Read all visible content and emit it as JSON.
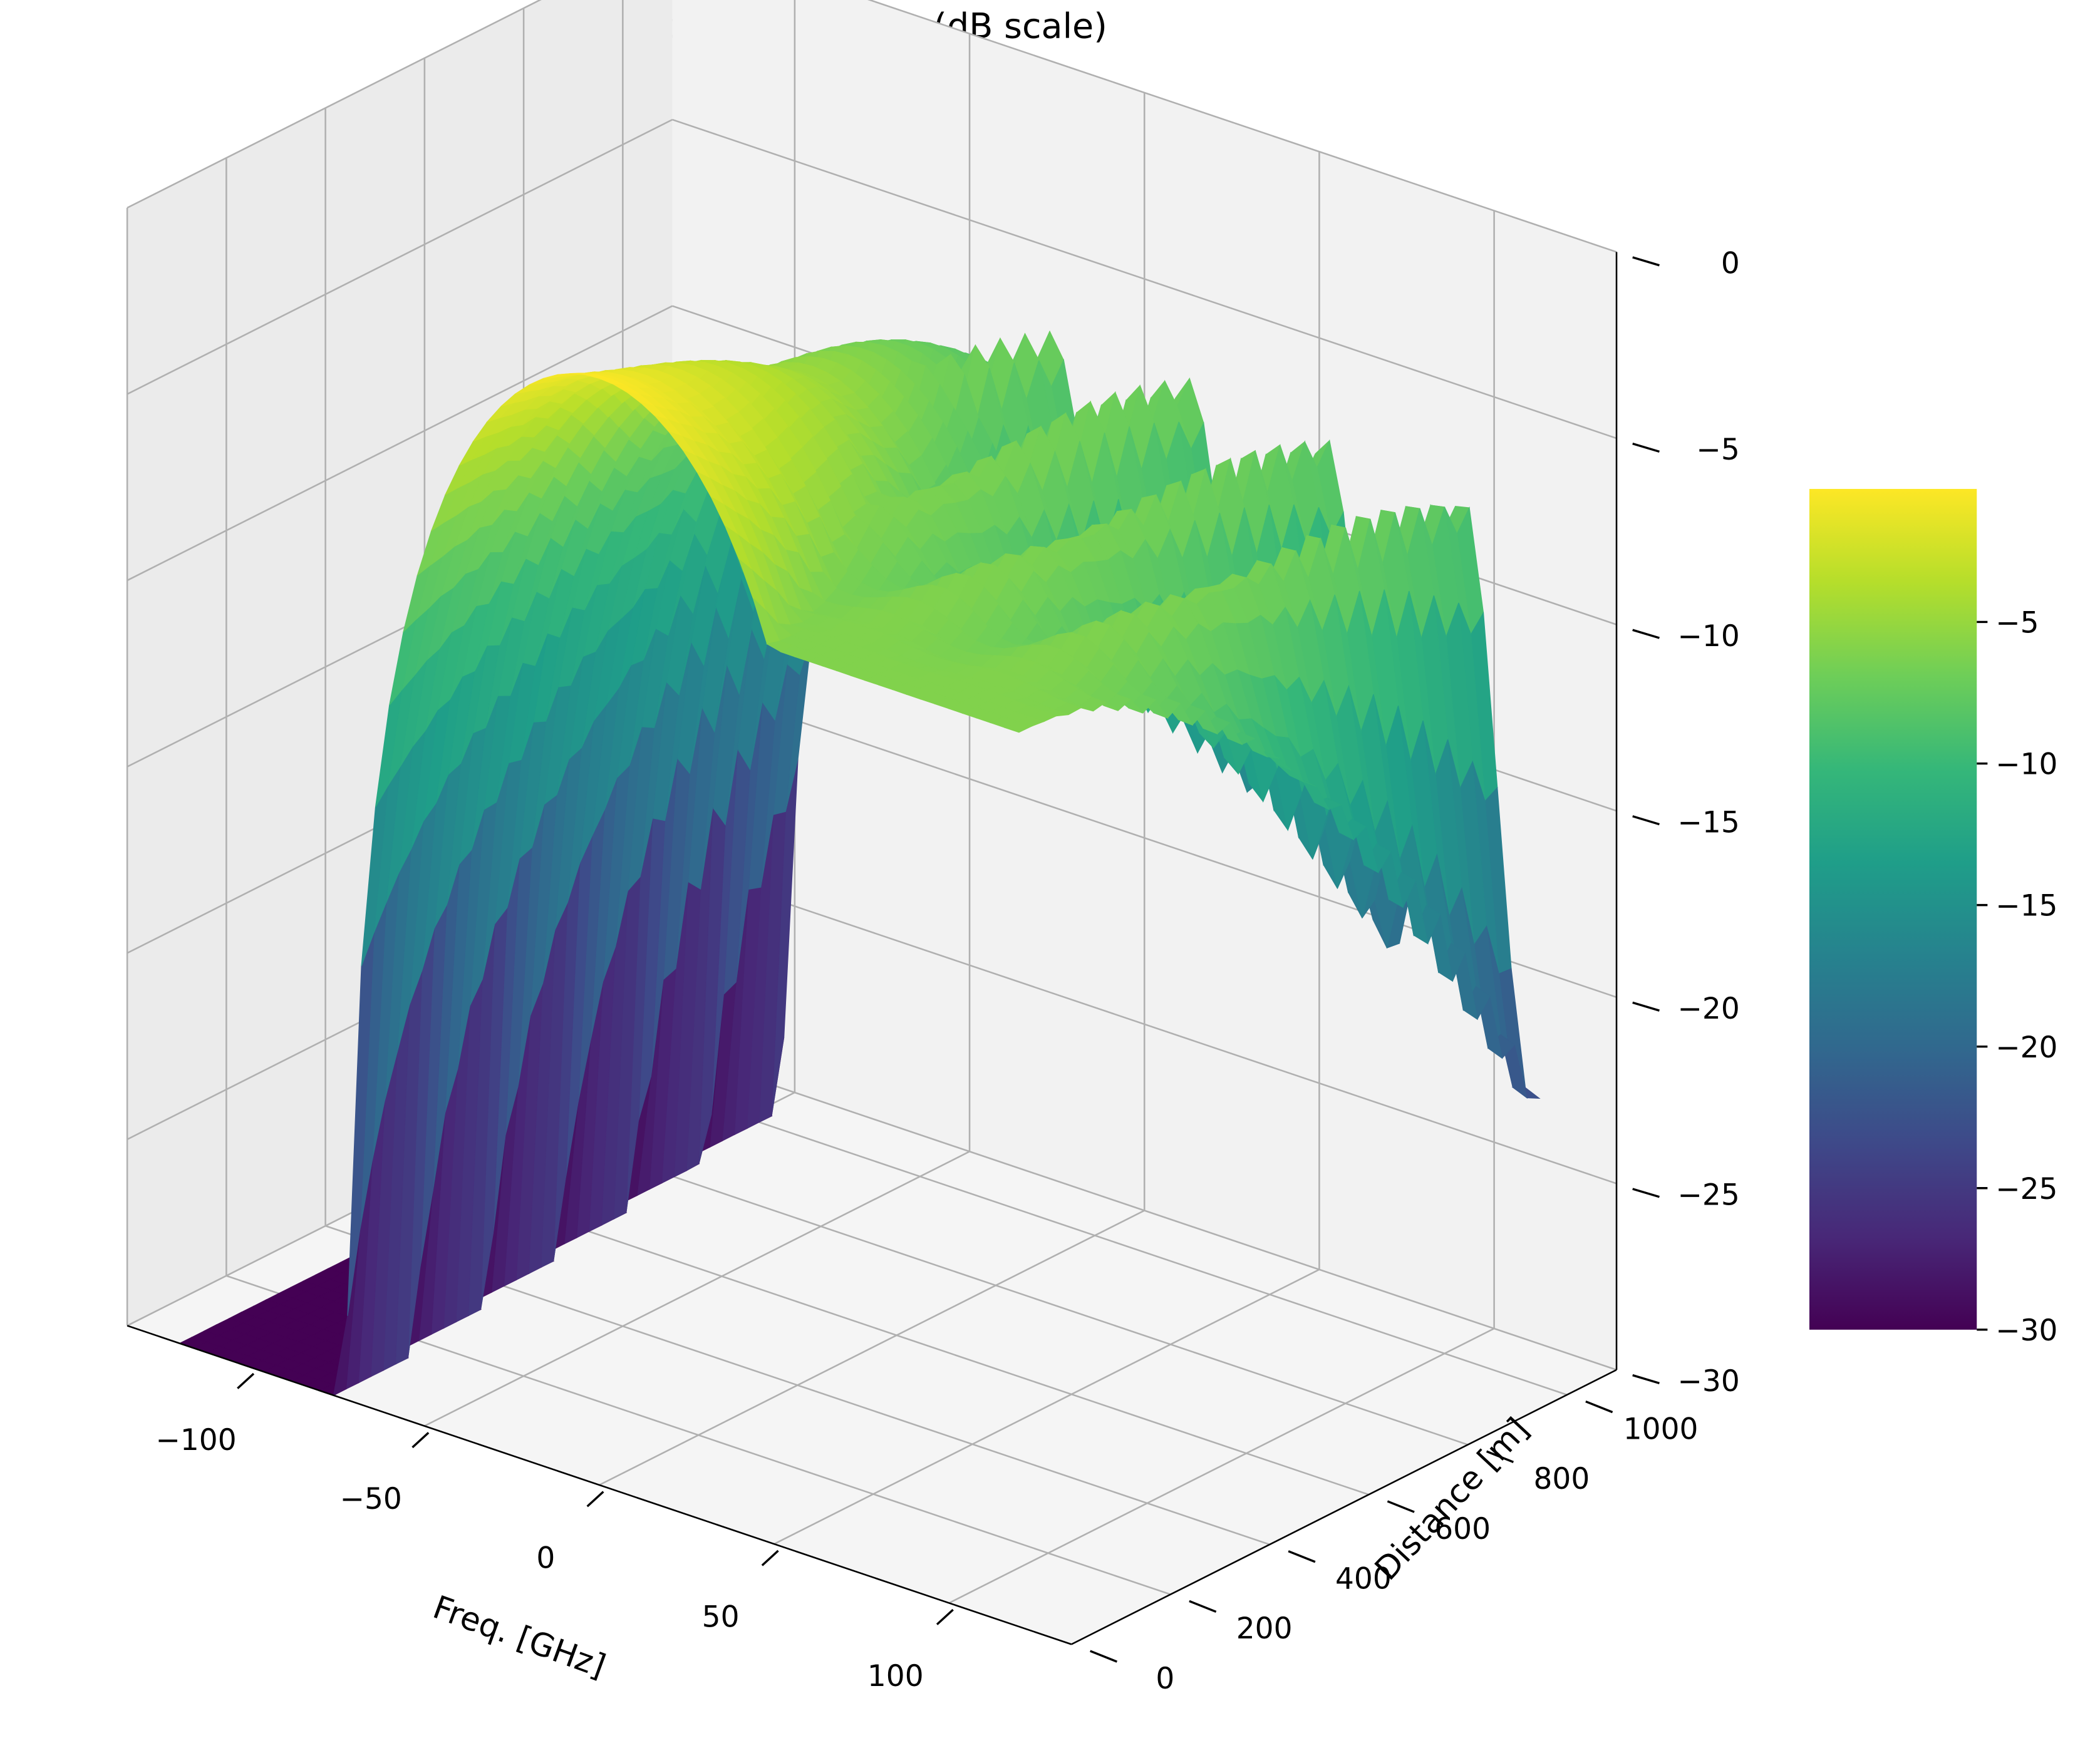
{
  "chart_data": {
    "type": "surface3d",
    "title": "Spectrum Evolution (dB scale)",
    "xlabel": "Freq. [GHz]",
    "ylabel": "Distance [m]",
    "zlabel": "",
    "xlim": [
      -135,
      135
    ],
    "ylim": [
      0,
      1100
    ],
    "zlim": [
      -30,
      0
    ],
    "xticks": [
      -100,
      -50,
      0,
      50,
      100
    ],
    "xtick_labels": [
      "−100",
      "−50",
      "0",
      "50",
      "100"
    ],
    "yticks": [
      0,
      200,
      400,
      600,
      800,
      1000
    ],
    "ytick_labels": [
      "0",
      "200",
      "400",
      "600",
      "800",
      "1000"
    ],
    "zticks": [
      -30,
      -25,
      -20,
      -15,
      -10,
      -5,
      0
    ],
    "ztick_labels": [
      "−30",
      "−25",
      "−20",
      "−15",
      "−10",
      "−5",
      "0"
    ],
    "colormap": "viridis",
    "colorbar": {
      "range": [
        -30,
        -0.3
      ],
      "ticks": [
        -30,
        -25,
        -20,
        -15,
        -10,
        -5
      ],
      "tick_labels": [
        "−30",
        "−25",
        "−20",
        "−15",
        "−10",
        "−5"
      ],
      "colors": [
        "#440154",
        "#482878",
        "#3e4989",
        "#31688e",
        "#26828e",
        "#1f9e89",
        "#35b779",
        "#6ece58",
        "#b5de2b",
        "#fde725"
      ]
    },
    "surface": {
      "description_values": "Spectrum level in dB clipped at -30; main lobe spans about -78 to +78 GHz at distance 0 and narrows with distance",
      "freq_range": [
        -120,
        120
      ],
      "distance_range": [
        0,
        1050
      ],
      "main_lobe_peak_db": -0.3,
      "far_peak_freq_ghz": -42,
      "far_peak_db": -9,
      "far_ripple_peaks_ghz": [
        -42,
        -12,
        12,
        30,
        55
      ],
      "far_ripple_peaks_db": [
        -9,
        -9.8,
        -13,
        -16.5,
        -18
      ],
      "floor_db": -30
    },
    "grid": true
  }
}
